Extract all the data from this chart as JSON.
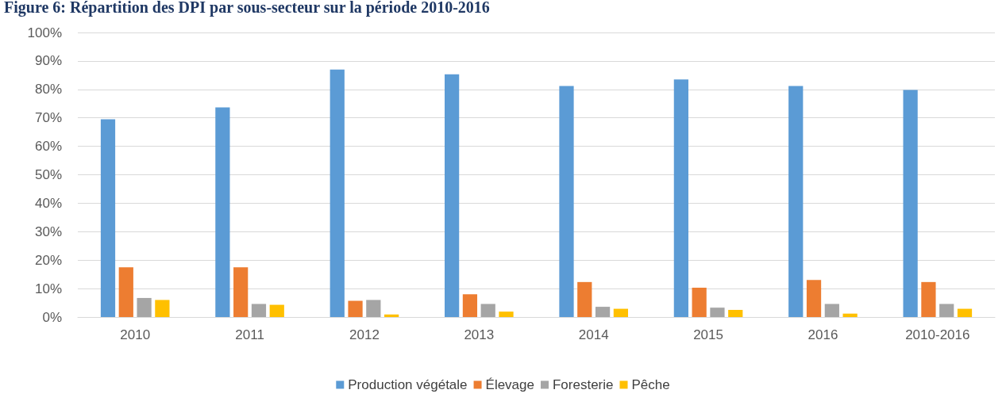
{
  "chart_data": {
    "type": "bar",
    "title": "Figure 6: Répartition des DPI par sous-secteur sur la période 2010-2016",
    "categories": [
      "2010",
      "2011",
      "2012",
      "2013",
      "2014",
      "2015",
      "2016",
      "2010-2016"
    ],
    "series": [
      {
        "name": "Production végétale",
        "color": "#5b9bd5",
        "values": [
          69.5,
          73.7,
          87,
          85.3,
          81.2,
          83.5,
          81.2,
          79.8
        ]
      },
      {
        "name": "Élevage",
        "color": "#ed7d31",
        "values": [
          17.5,
          17.5,
          5.7,
          8,
          12.3,
          10.3,
          13,
          12.3
        ]
      },
      {
        "name": "Foresterie",
        "color": "#a5a5a5",
        "values": [
          6.7,
          4.6,
          6,
          4.6,
          3.6,
          3.3,
          4.6,
          4.6
        ]
      },
      {
        "name": "Pêche",
        "color": "#ffc000",
        "values": [
          6,
          4.3,
          0.9,
          1.9,
          2.9,
          2.5,
          1.2,
          2.9
        ]
      }
    ],
    "ylim": [
      0,
      100
    ],
    "yticks": [
      {
        "value": 0,
        "label": "0%"
      },
      {
        "value": 10,
        "label": "10%"
      },
      {
        "value": 20,
        "label": "20%"
      },
      {
        "value": 30,
        "label": "30%"
      },
      {
        "value": 40,
        "label": "40%"
      },
      {
        "value": 50,
        "label": "50%"
      },
      {
        "value": 60,
        "label": "60%"
      },
      {
        "value": 70,
        "label": "70%"
      },
      {
        "value": 80,
        "label": "80%"
      },
      {
        "value": 90,
        "label": "90%"
      },
      {
        "value": 100,
        "label": "100%"
      }
    ],
    "grid": "y",
    "legend": "bottom"
  }
}
